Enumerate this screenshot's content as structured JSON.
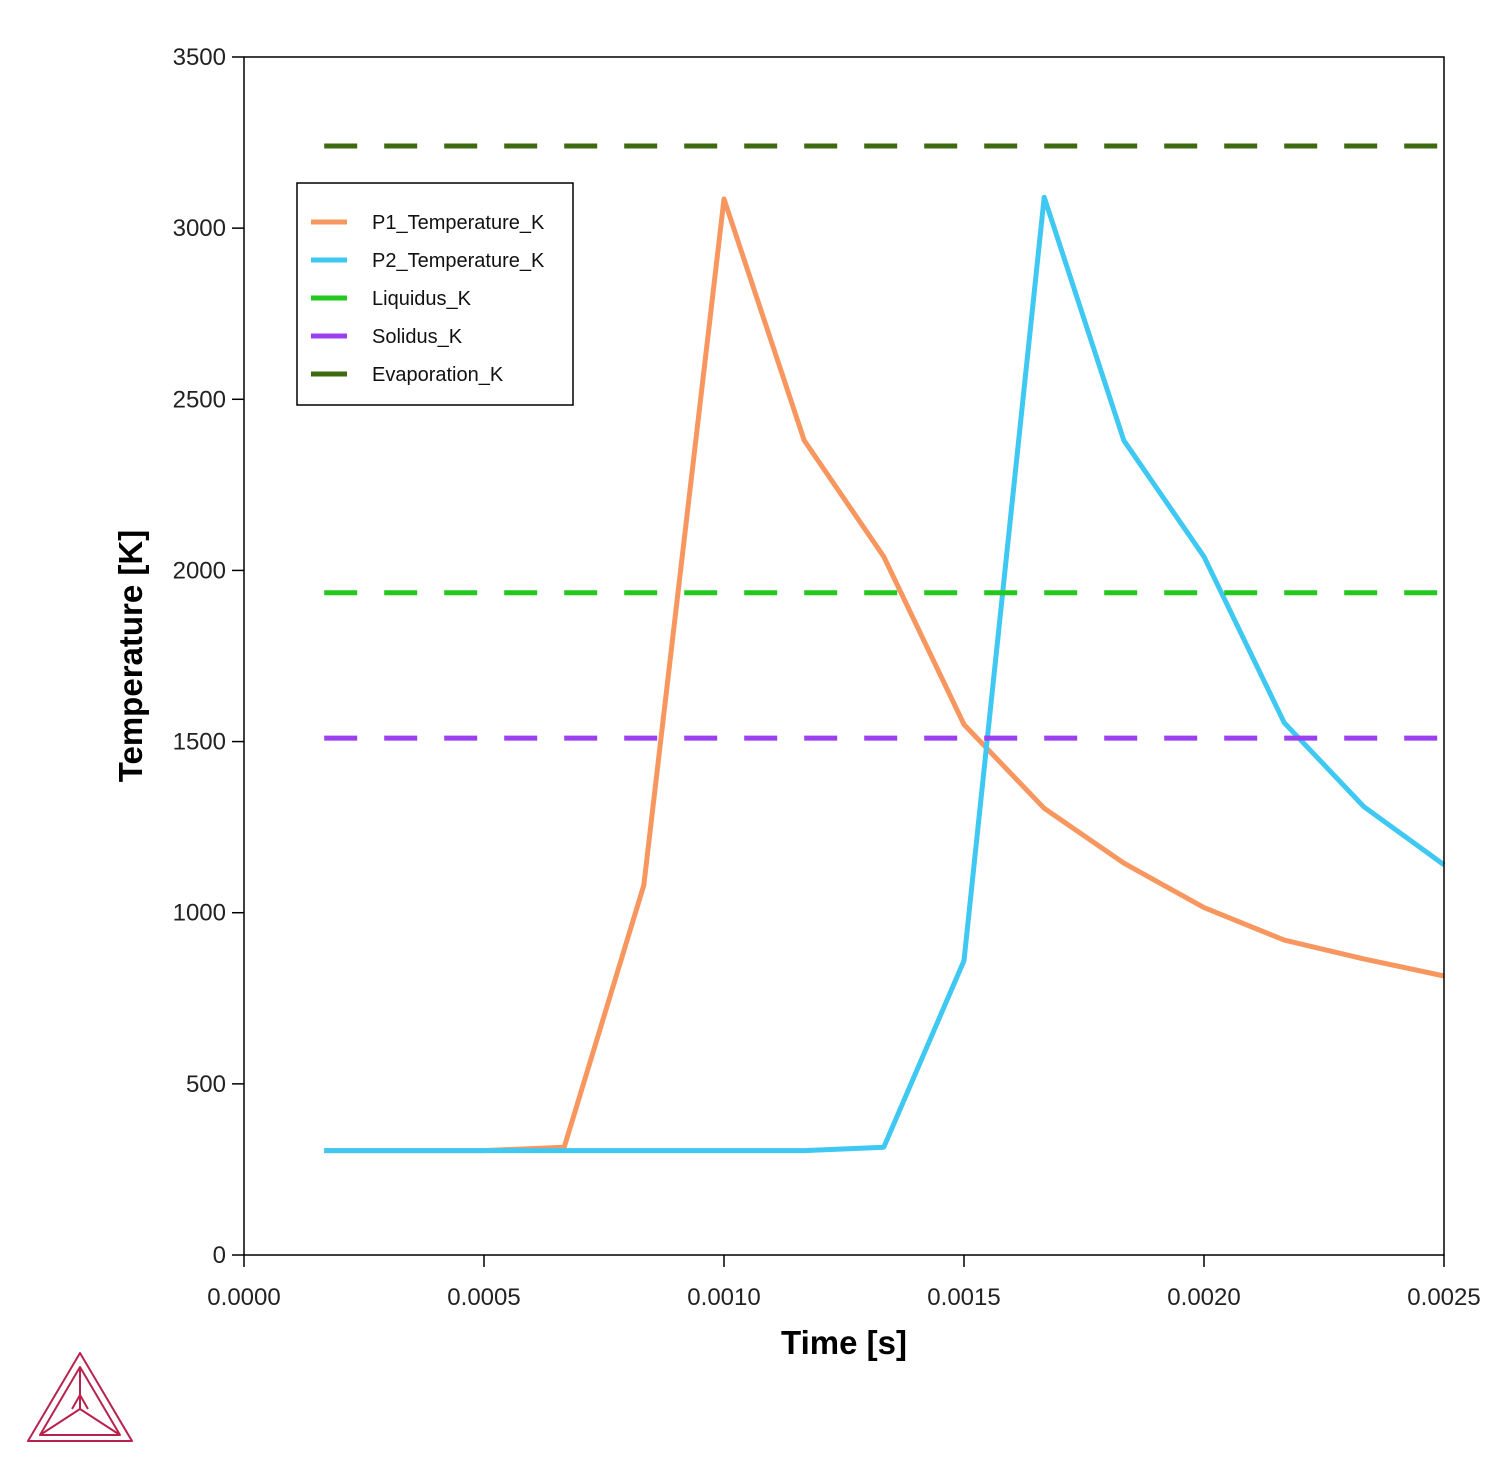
{
  "chart_data": {
    "type": "line",
    "xlabel": "Time [s]",
    "ylabel": "Temperature [K]",
    "xlim": [
      0,
      0.0025
    ],
    "ylim": [
      0,
      3500
    ],
    "xticks": [
      0,
      0.0005,
      0.001,
      0.0015,
      0.002,
      0.0025
    ],
    "xtick_labels": [
      "0.0000",
      "0.0005",
      "0.0010",
      "0.0015",
      "0.0020",
      "0.0025"
    ],
    "yticks": [
      0,
      500,
      1000,
      1500,
      2000,
      2500,
      3000,
      3500
    ],
    "ytick_labels": [
      "0",
      "500",
      "1000",
      "1500",
      "2000",
      "2500",
      "3000",
      "3500"
    ],
    "grid": false,
    "legend_position": "top-left",
    "series": [
      {
        "name": "P1_Temperature_K",
        "color": "#f7975f",
        "style": "solid",
        "x": [
          0.000167,
          0.000333,
          0.0005,
          0.000667,
          0.000833,
          0.001,
          0.001167,
          0.001333,
          0.0015,
          0.001667,
          0.001833,
          0.002,
          0.002167,
          0.002333,
          0.0025
        ],
        "y": [
          305,
          305,
          305,
          315,
          1080,
          3085,
          2380,
          2040,
          1550,
          1305,
          1145,
          1015,
          920,
          865,
          815
        ]
      },
      {
        "name": "P2_Temperature_K",
        "color": "#3ec8f2",
        "style": "solid",
        "x": [
          0.000167,
          0.000333,
          0.0005,
          0.000667,
          0.000833,
          0.001,
          0.001167,
          0.001333,
          0.0015,
          0.001667,
          0.001833,
          0.002,
          0.002167,
          0.002333,
          0.0025
        ],
        "y": [
          305,
          305,
          305,
          305,
          305,
          305,
          305,
          315,
          860,
          3090,
          2380,
          2040,
          1555,
          1310,
          1140
        ]
      },
      {
        "name": "Liquidus_K",
        "color": "#22c81e",
        "style": "dashed",
        "x": [
          0.000167,
          0.0025
        ],
        "y": [
          1935,
          1935
        ]
      },
      {
        "name": "Solidus_K",
        "color": "#9b3ff0",
        "style": "dashed",
        "x": [
          0.000167,
          0.0025
        ],
        "y": [
          1510,
          1510
        ]
      },
      {
        "name": "Evaporation_K",
        "color": "#3e6a10",
        "style": "dashed",
        "x": [
          0.000167,
          0.0025
        ],
        "y": [
          3240,
          3240
        ]
      }
    ]
  },
  "logo": {
    "icon": "thermo-calc-triangle-logo-icon",
    "color": "#b8234e"
  }
}
